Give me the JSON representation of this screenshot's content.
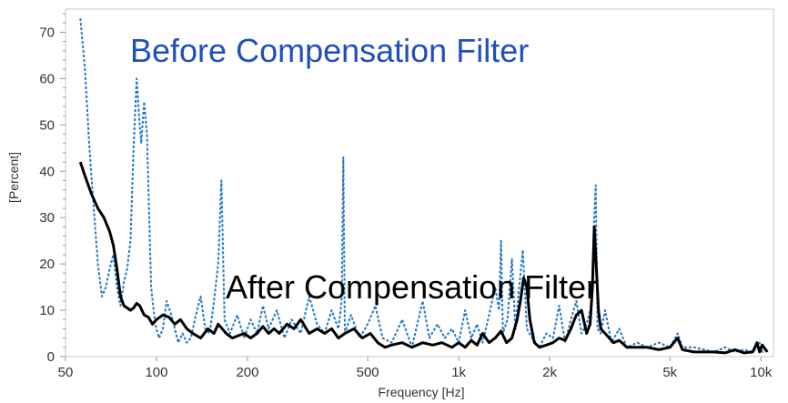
{
  "chart_data": {
    "type": "line",
    "xlabel": "Frequency [Hz]",
    "ylabel": "[Percent]",
    "xscale": "log",
    "xlim": [
      50,
      11000
    ],
    "ylim": [
      0,
      75
    ],
    "grid": false,
    "x_ticks": [
      {
        "value": 50,
        "label": "50"
      },
      {
        "value": 100,
        "label": "100"
      },
      {
        "value": 200,
        "label": "200"
      },
      {
        "value": 500,
        "label": "500"
      },
      {
        "value": 1000,
        "label": "1k"
      },
      {
        "value": 2000,
        "label": "2k"
      },
      {
        "value": 5000,
        "label": "5k"
      },
      {
        "value": 10000,
        "label": "10k"
      }
    ],
    "y_ticks": [
      {
        "value": 0,
        "label": "0"
      },
      {
        "value": 10,
        "label": "10"
      },
      {
        "value": 20,
        "label": "20"
      },
      {
        "value": 30,
        "label": "30"
      },
      {
        "value": 40,
        "label": "40"
      },
      {
        "value": 50,
        "label": "50"
      },
      {
        "value": 60,
        "label": "60"
      },
      {
        "value": 70,
        "label": "70"
      }
    ],
    "series": [
      {
        "color": "#1f78c8",
        "dash": "dotted",
        "points": [
          [
            56,
            73
          ],
          [
            58,
            62
          ],
          [
            60,
            45
          ],
          [
            62,
            32
          ],
          [
            64,
            20
          ],
          [
            66,
            13
          ],
          [
            68,
            15
          ],
          [
            70,
            19
          ],
          [
            72,
            22
          ],
          [
            74,
            15
          ],
          [
            76,
            11
          ],
          [
            78,
            16
          ],
          [
            80,
            19
          ],
          [
            82,
            25
          ],
          [
            84,
            45
          ],
          [
            86,
            60
          ],
          [
            88,
            50
          ],
          [
            89,
            46
          ],
          [
            91,
            55
          ],
          [
            93,
            48
          ],
          [
            96,
            15
          ],
          [
            99,
            7
          ],
          [
            102,
            4
          ],
          [
            105,
            6
          ],
          [
            108,
            12
          ],
          [
            112,
            9
          ],
          [
            115,
            6
          ],
          [
            118,
            3
          ],
          [
            122,
            5
          ],
          [
            126,
            3
          ],
          [
            130,
            4
          ],
          [
            135,
            9
          ],
          [
            140,
            13
          ],
          [
            145,
            6
          ],
          [
            150,
            5
          ],
          [
            155,
            12
          ],
          [
            160,
            20
          ],
          [
            164,
            38
          ],
          [
            168,
            8
          ],
          [
            175,
            5
          ],
          [
            185,
            9
          ],
          [
            195,
            4
          ],
          [
            205,
            8
          ],
          [
            215,
            5
          ],
          [
            225,
            11
          ],
          [
            235,
            6
          ],
          [
            250,
            10
          ],
          [
            265,
            4
          ],
          [
            280,
            8
          ],
          [
            300,
            5
          ],
          [
            320,
            13
          ],
          [
            340,
            7
          ],
          [
            360,
            5
          ],
          [
            380,
            10
          ],
          [
            400,
            6
          ],
          [
            410,
            12
          ],
          [
            415,
            43
          ],
          [
            420,
            5
          ],
          [
            440,
            9
          ],
          [
            470,
            4
          ],
          [
            500,
            7
          ],
          [
            530,
            11
          ],
          [
            560,
            4
          ],
          [
            600,
            3
          ],
          [
            650,
            8
          ],
          [
            700,
            2
          ],
          [
            760,
            12
          ],
          [
            800,
            4
          ],
          [
            850,
            7
          ],
          [
            900,
            4
          ],
          [
            950,
            6
          ],
          [
            1000,
            3
          ],
          [
            1050,
            10
          ],
          [
            1100,
            4
          ],
          [
            1150,
            7
          ],
          [
            1200,
            3
          ],
          [
            1260,
            9
          ],
          [
            1320,
            15
          ],
          [
            1360,
            10
          ],
          [
            1380,
            25
          ],
          [
            1400,
            5
          ],
          [
            1450,
            8
          ],
          [
            1500,
            21
          ],
          [
            1540,
            6
          ],
          [
            1580,
            14
          ],
          [
            1630,
            23
          ],
          [
            1680,
            6
          ],
          [
            1750,
            4
          ],
          [
            1850,
            2
          ],
          [
            1950,
            5
          ],
          [
            2050,
            4
          ],
          [
            2150,
            11
          ],
          [
            2250,
            3
          ],
          [
            2350,
            8
          ],
          [
            2450,
            12
          ],
          [
            2550,
            5
          ],
          [
            2650,
            7
          ],
          [
            2750,
            11
          ],
          [
            2800,
            28
          ],
          [
            2840,
            37
          ],
          [
            2880,
            6
          ],
          [
            2950,
            5
          ],
          [
            3050,
            10
          ],
          [
            3200,
            3
          ],
          [
            3400,
            6
          ],
          [
            3600,
            2
          ],
          [
            3900,
            3
          ],
          [
            4200,
            2
          ],
          [
            4600,
            3
          ],
          [
            5000,
            2
          ],
          [
            5300,
            5
          ],
          [
            5500,
            2
          ],
          [
            6000,
            2
          ],
          [
            6500,
            1.5
          ],
          [
            7000,
            1
          ],
          [
            7600,
            2
          ],
          [
            8200,
            1
          ],
          [
            8800,
            1.5
          ],
          [
            9400,
            1
          ],
          [
            9700,
            2
          ],
          [
            9900,
            3
          ],
          [
            10100,
            1
          ],
          [
            10500,
            2
          ]
        ]
      },
      {
        "color": "#000000",
        "dash": "solid",
        "points": [
          [
            56,
            42
          ],
          [
            58,
            39
          ],
          [
            61,
            35
          ],
          [
            64,
            32
          ],
          [
            67,
            30
          ],
          [
            70,
            27
          ],
          [
            72,
            24
          ],
          [
            74,
            19
          ],
          [
            76,
            13
          ],
          [
            78,
            11
          ],
          [
            80,
            10.5
          ],
          [
            82,
            10
          ],
          [
            84,
            10.5
          ],
          [
            86,
            11.5
          ],
          [
            88,
            11
          ],
          [
            91,
            9
          ],
          [
            94,
            8.5
          ],
          [
            97,
            7
          ],
          [
            100,
            8
          ],
          [
            105,
            9
          ],
          [
            110,
            8.5
          ],
          [
            115,
            7
          ],
          [
            120,
            8
          ],
          [
            126,
            6
          ],
          [
            132,
            5
          ],
          [
            140,
            4
          ],
          [
            148,
            6
          ],
          [
            155,
            5
          ],
          [
            160,
            7
          ],
          [
            165,
            6
          ],
          [
            170,
            5
          ],
          [
            178,
            4
          ],
          [
            186,
            4.5
          ],
          [
            195,
            5
          ],
          [
            205,
            4
          ],
          [
            215,
            5
          ],
          [
            225,
            6.5
          ],
          [
            235,
            5
          ],
          [
            245,
            6
          ],
          [
            255,
            5
          ],
          [
            270,
            7
          ],
          [
            285,
            6
          ],
          [
            300,
            8
          ],
          [
            320,
            5
          ],
          [
            340,
            6
          ],
          [
            360,
            5
          ],
          [
            380,
            6
          ],
          [
            400,
            4
          ],
          [
            420,
            5
          ],
          [
            450,
            6
          ],
          [
            480,
            4
          ],
          [
            510,
            5
          ],
          [
            540,
            3
          ],
          [
            570,
            2
          ],
          [
            600,
            2.5
          ],
          [
            650,
            3
          ],
          [
            700,
            2
          ],
          [
            760,
            3
          ],
          [
            820,
            2.5
          ],
          [
            880,
            3
          ],
          [
            950,
            2
          ],
          [
            1000,
            3
          ],
          [
            1050,
            2
          ],
          [
            1100,
            3.5
          ],
          [
            1150,
            2.5
          ],
          [
            1200,
            5
          ],
          [
            1260,
            3
          ],
          [
            1320,
            4
          ],
          [
            1380,
            5.5
          ],
          [
            1440,
            3
          ],
          [
            1500,
            4
          ],
          [
            1560,
            8
          ],
          [
            1600,
            12
          ],
          [
            1640,
            17
          ],
          [
            1680,
            15
          ],
          [
            1720,
            8
          ],
          [
            1780,
            3
          ],
          [
            1850,
            2
          ],
          [
            1950,
            2.5
          ],
          [
            2050,
            3
          ],
          [
            2150,
            4
          ],
          [
            2250,
            3.5
          ],
          [
            2350,
            6
          ],
          [
            2450,
            9
          ],
          [
            2550,
            10
          ],
          [
            2650,
            5
          ],
          [
            2720,
            7
          ],
          [
            2770,
            15
          ],
          [
            2810,
            28
          ],
          [
            2850,
            20
          ],
          [
            2900,
            10
          ],
          [
            2950,
            6
          ],
          [
            3050,
            5
          ],
          [
            3150,
            4
          ],
          [
            3250,
            3
          ],
          [
            3400,
            3.5
          ],
          [
            3600,
            2
          ],
          [
            3900,
            2
          ],
          [
            4200,
            2
          ],
          [
            4600,
            1.5
          ],
          [
            5000,
            2
          ],
          [
            5300,
            4
          ],
          [
            5500,
            1.5
          ],
          [
            6000,
            1
          ],
          [
            6500,
            1
          ],
          [
            7000,
            1
          ],
          [
            7600,
            0.8
          ],
          [
            8200,
            1.5
          ],
          [
            8800,
            0.8
          ],
          [
            9400,
            1
          ],
          [
            9700,
            3
          ],
          [
            9900,
            1
          ],
          [
            10100,
            2.5
          ],
          [
            10500,
            1
          ]
        ]
      }
    ]
  },
  "annotations": {
    "before": {
      "text": "Before Compensation Filter",
      "color": "#1f4fbf"
    },
    "after": {
      "text": "After Compensation Filter",
      "color": "#000000"
    }
  }
}
